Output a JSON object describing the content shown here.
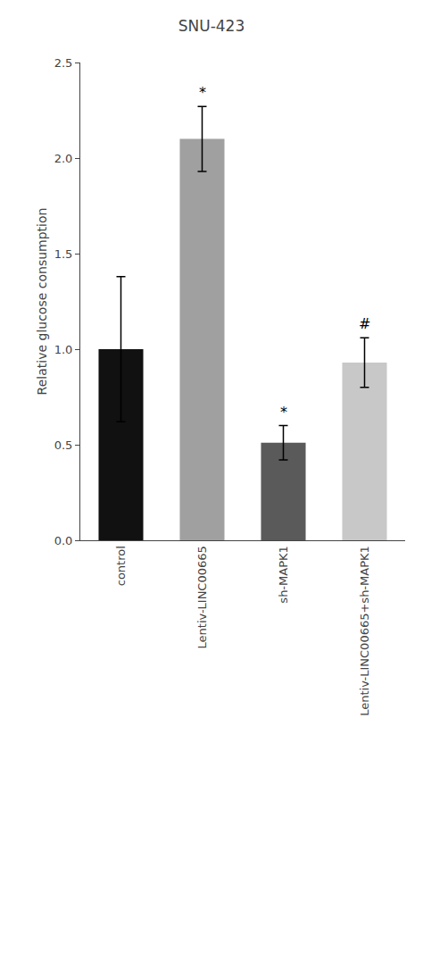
{
  "chart_data": {
    "type": "bar",
    "title": "SNU-423",
    "ylabel": "Relative glucose consumption",
    "categories": [
      "control",
      "Lentiv-LINC00665",
      "sh-MAPK1",
      "Lentiv-LINC00665+sh-MAPK1"
    ],
    "values": [
      1.0,
      2.1,
      0.51,
      0.93
    ],
    "errors": [
      0.38,
      0.17,
      0.09,
      0.13
    ],
    "colors": [
      "#111111",
      "#a0a0a0",
      "#5a5a5a",
      "#c8c8c8"
    ],
    "ylim": [
      0,
      2.5
    ],
    "yticks": [
      {
        "value": 0,
        "label": "0.0"
      },
      0.5,
      {
        "value": 1,
        "label": "1.0"
      },
      1.5,
      {
        "value": 2,
        "label": "2.0"
      },
      2.5
    ],
    "annotations": [
      {
        "x": "Lentiv-LINC00665",
        "text": "*"
      },
      {
        "x": "sh-MAPK1",
        "text": "*"
      },
      {
        "x": "Lentiv-LINC00665+sh-MAPK1",
        "text": "#"
      }
    ],
    "grid": false
  }
}
